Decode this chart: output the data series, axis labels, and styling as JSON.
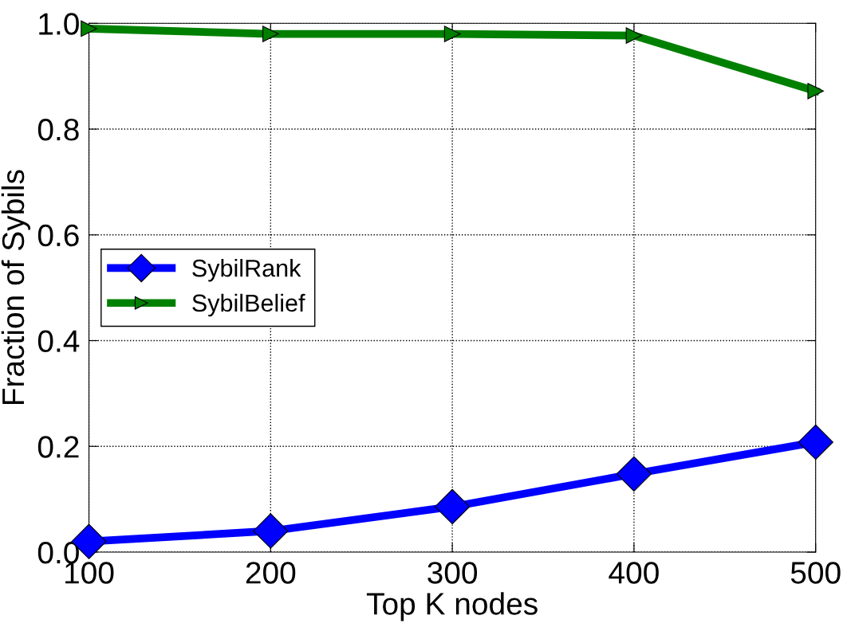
{
  "chart_data": {
    "type": "line",
    "xlabel": "Top K nodes",
    "ylabel": "Fraction of Sybils",
    "x": [
      100,
      200,
      300,
      400,
      500
    ],
    "series": [
      {
        "name": "SybilRank",
        "color": "#0000ff",
        "marker": "diamond",
        "values": [
          0.02,
          0.04,
          0.086,
          0.148,
          0.208
        ]
      },
      {
        "name": "SybilBelief",
        "color": "#008000",
        "marker": "triangle",
        "values": [
          0.99,
          0.98,
          0.98,
          0.977,
          0.872
        ]
      }
    ],
    "xlim": [
      100,
      500
    ],
    "xticks": [
      100,
      200,
      300,
      400,
      500
    ],
    "ylim": [
      0,
      1.0
    ],
    "yticks": [
      {
        "value": 0,
        "label": "0.0"
      },
      {
        "value": 0.2,
        "label": "0.2"
      },
      {
        "value": 0.4,
        "label": "0.4"
      },
      {
        "value": 0.6,
        "label": "0.6"
      },
      {
        "value": 0.8,
        "label": "0.8"
      },
      {
        "value": 1.0,
        "label": "1.0"
      }
    ],
    "grid": true,
    "legend": "left",
    "line_style": "solid"
  }
}
